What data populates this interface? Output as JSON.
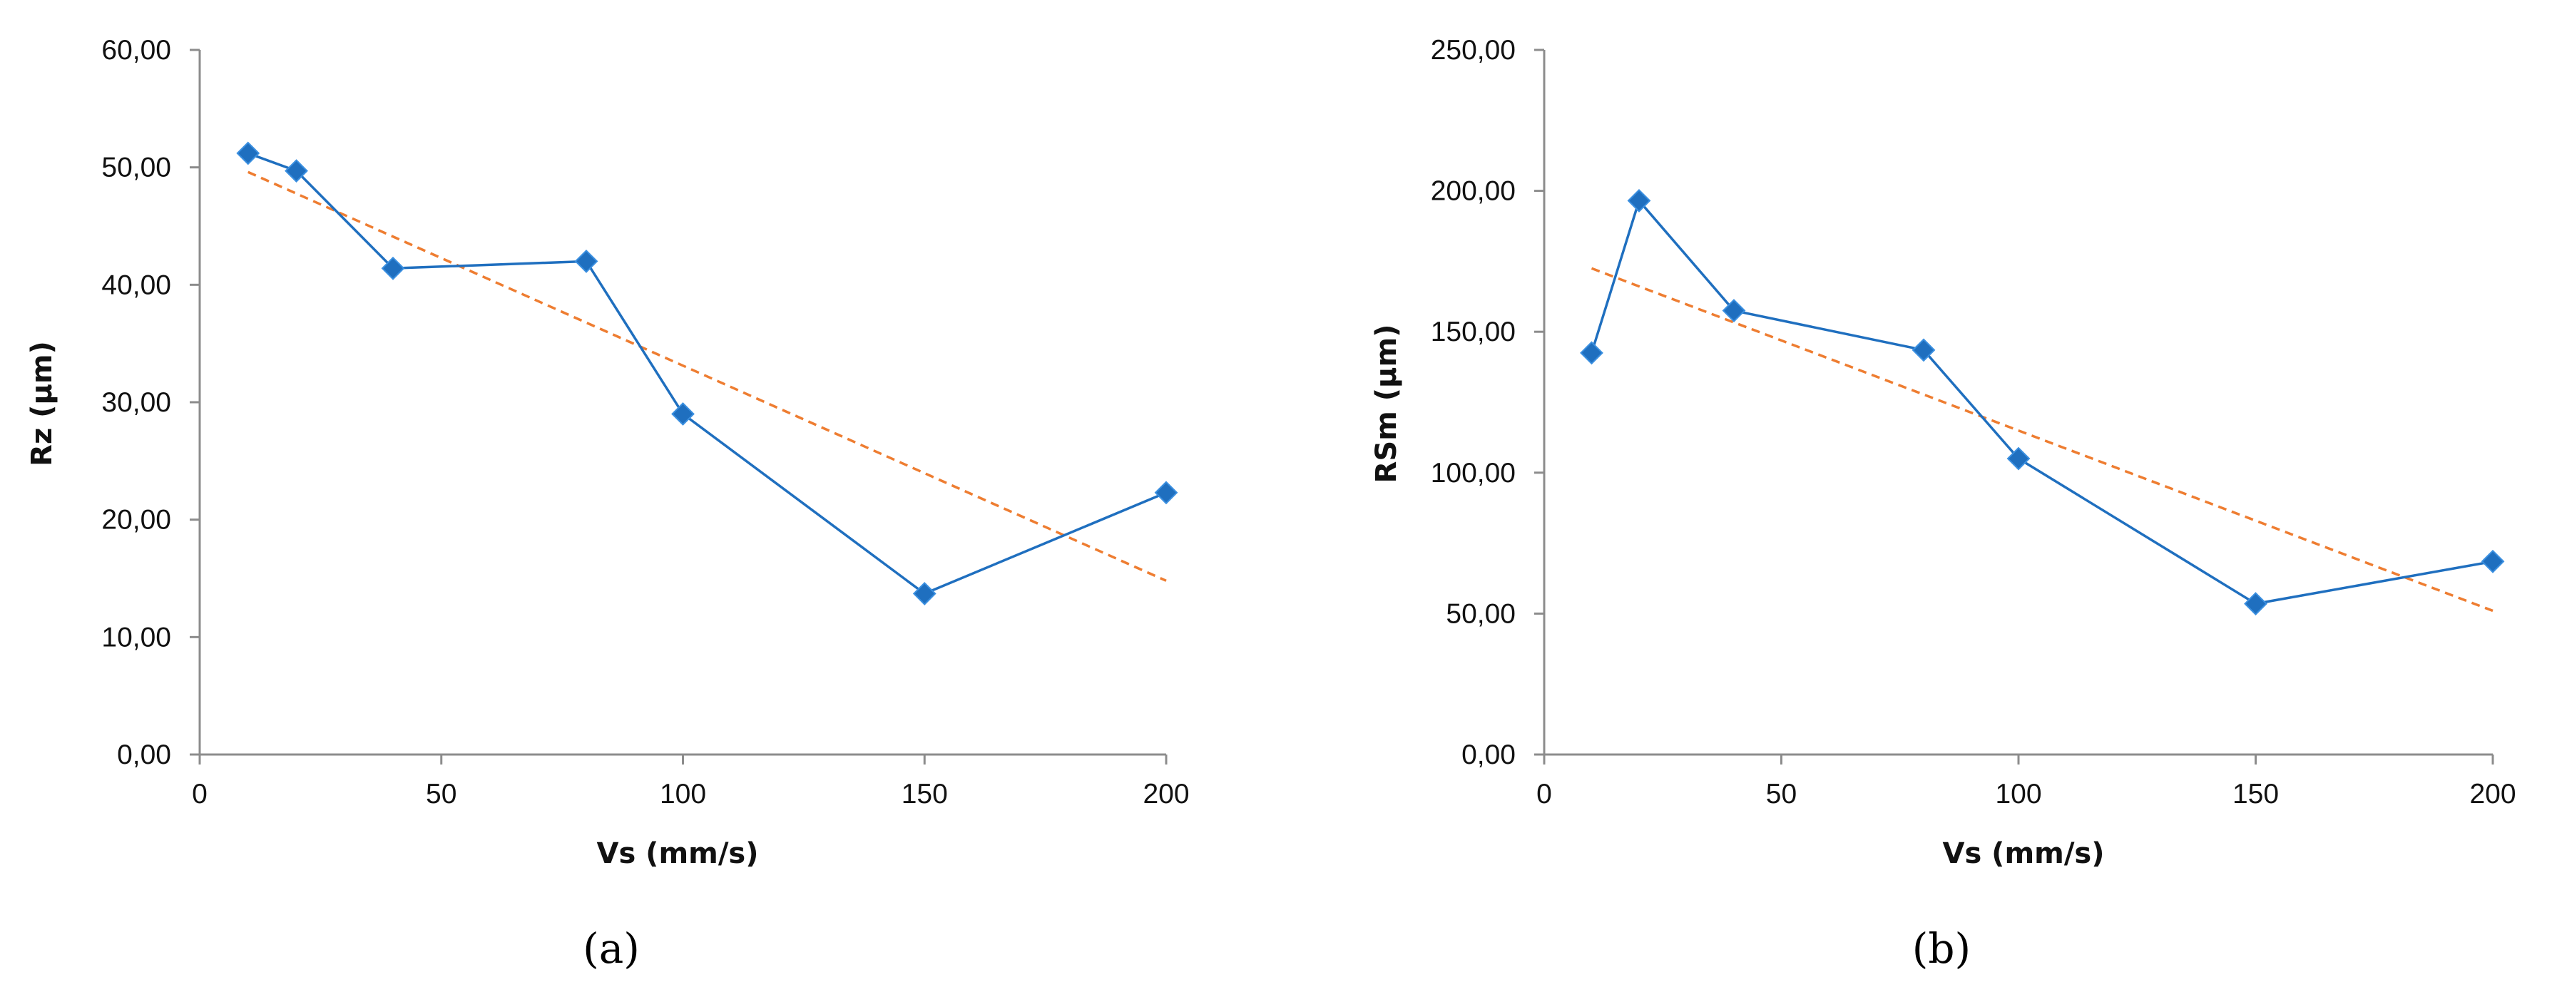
{
  "chart_data": [
    {
      "type": "line",
      "panel_label": "(a)",
      "xlabel": "Vs (mm/s)",
      "ylabel": "Rz (μm)",
      "xlim": [
        0,
        200
      ],
      "ylim": [
        0,
        60
      ],
      "x_ticks": [
        0,
        50,
        100,
        150,
        200
      ],
      "y_ticks": [
        0,
        10,
        20,
        30,
        40,
        50,
        60
      ],
      "x_tick_labels": [
        "0",
        "50",
        "100",
        "150",
        "200"
      ],
      "y_tick_labels": [
        "0,00",
        "10,00",
        "20,00",
        "30,00",
        "40,00",
        "50,00",
        "60,00"
      ],
      "grid": false,
      "legend": "none",
      "series": [
        {
          "x": [
            10,
            20,
            40,
            80,
            100,
            150,
            200
          ],
          "values": [
            51.2,
            49.7,
            41.4,
            42.0,
            29.0,
            13.7,
            22.3
          ],
          "color": "#1f6fbf",
          "marker": "diamond"
        }
      ],
      "trendline": {
        "kind": "linear",
        "x": [
          10,
          200
        ],
        "values": [
          49.6,
          14.8
        ],
        "color": "#ee7d31",
        "style": "dashed"
      }
    },
    {
      "type": "line",
      "panel_label": "(b)",
      "xlabel": "Vs (mm/s)",
      "ylabel": "RSm (μm)",
      "xlim": [
        0,
        200
      ],
      "ylim": [
        0,
        250
      ],
      "x_ticks": [
        0,
        50,
        100,
        150,
        200
      ],
      "y_ticks": [
        0,
        50,
        100,
        150,
        200,
        250
      ],
      "x_tick_labels": [
        "0",
        "50",
        "100",
        "150",
        "200"
      ],
      "y_tick_labels": [
        "0,00",
        "50,00",
        "100,00",
        "150,00",
        "200,00",
        "250,00"
      ],
      "grid": false,
      "legend": "none",
      "series": [
        {
          "x": [
            10,
            20,
            40,
            80,
            100,
            150,
            200
          ],
          "values": [
            142.5,
            196.5,
            157.5,
            143.5,
            105.0,
            53.5,
            68.5
          ],
          "color": "#1f6fbf",
          "marker": "diamond"
        }
      ],
      "trendline": {
        "kind": "linear",
        "x": [
          10,
          200
        ],
        "values": [
          172.5,
          51.0
        ],
        "color": "#ee7d31",
        "style": "dashed"
      }
    }
  ]
}
